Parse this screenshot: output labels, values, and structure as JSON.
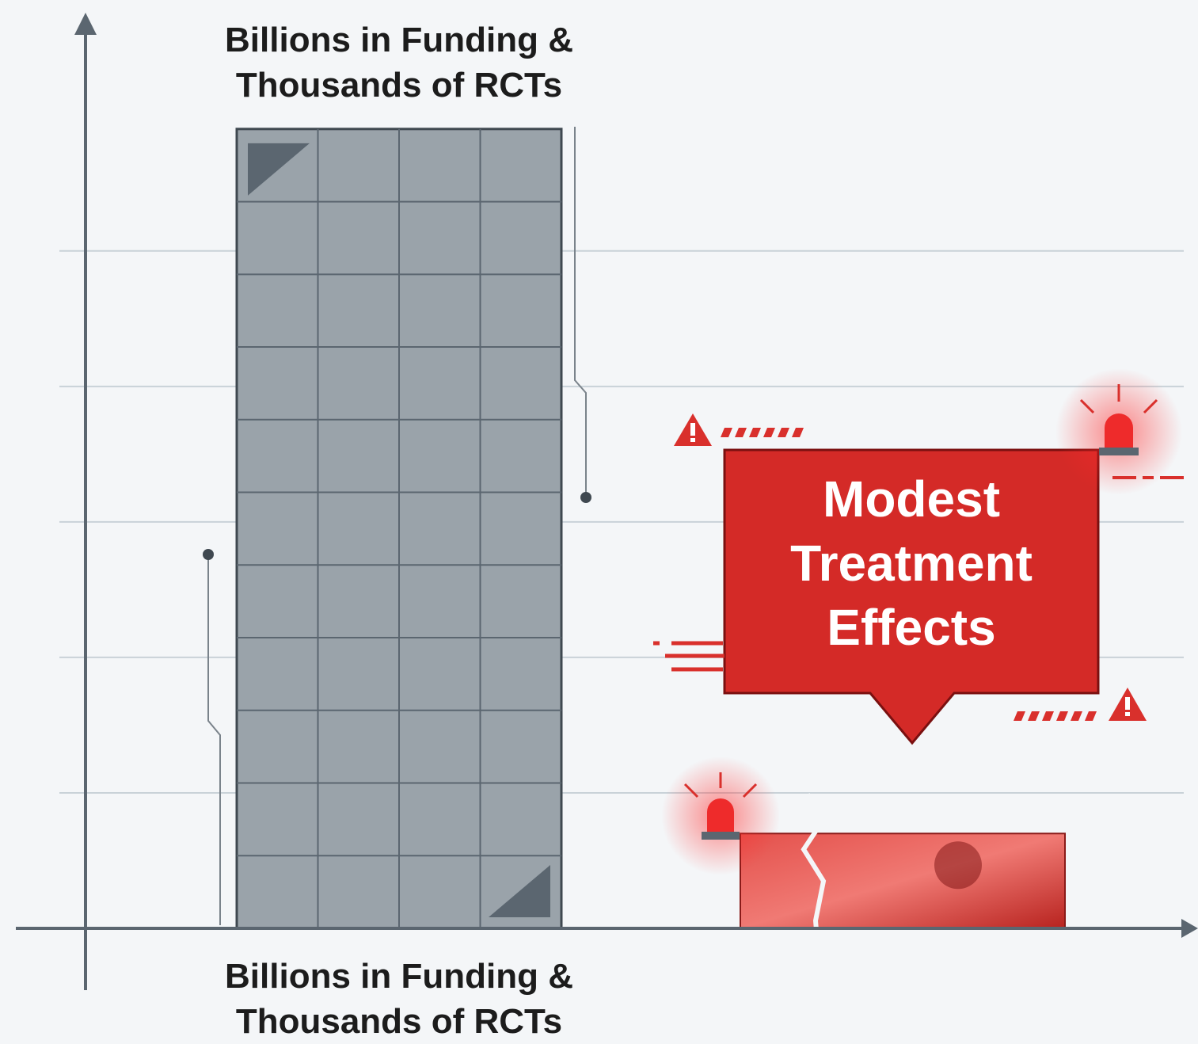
{
  "chart_data": {
    "type": "bar",
    "title": "Billions in Funding & Thousands of RCTs",
    "categories": [
      "Billions in Funding & Thousands of RCTs",
      null
    ],
    "values": [
      5.9,
      0.7
    ],
    "colors": [
      "#9aa3aa",
      "#d9302c"
    ],
    "ylim": [
      0,
      6.7
    ],
    "gridlines": [
      1,
      2,
      3,
      4,
      5
    ],
    "grid": true,
    "annotation": "Modest Treatment Effects"
  }
}
